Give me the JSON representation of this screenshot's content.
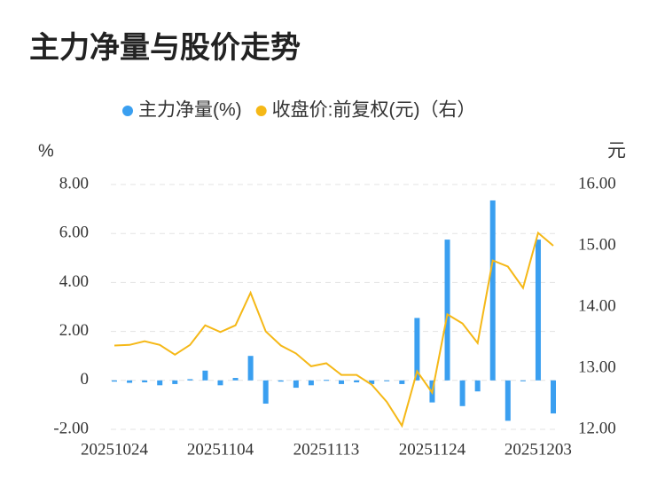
{
  "chart_data": {
    "type": "bar_line",
    "title": "主力净量与股价走势",
    "ylabel": "%",
    "y2label": "元",
    "categories": [
      "20251024",
      null,
      null,
      null,
      null,
      null,
      null,
      "20251104",
      null,
      null,
      null,
      null,
      null,
      null,
      "20251113",
      null,
      null,
      null,
      null,
      null,
      null,
      "20251124",
      null,
      null,
      null,
      null,
      null,
      null,
      "20251203",
      null
    ],
    "series": [
      {
        "name": "主力净量(%)",
        "type": "bar",
        "color": "#3a9ff0",
        "values": [
          -0.05,
          -0.1,
          -0.08,
          -0.2,
          -0.15,
          0.05,
          0.4,
          -0.2,
          0.1,
          1.0,
          -0.95,
          -0.05,
          -0.3,
          -0.2,
          0.02,
          -0.15,
          -0.08,
          -0.15,
          0,
          -0.15,
          2.55,
          -0.9,
          5.75,
          -1.05,
          -0.45,
          7.35,
          -1.65,
          0,
          5.75,
          -1.35
        ]
      },
      {
        "name": "收盘价:前复权(元)（右）",
        "type": "line",
        "axis": "y2",
        "color": "#f5b817",
        "values": [
          13.37,
          13.38,
          13.44,
          13.38,
          13.22,
          13.38,
          13.7,
          13.59,
          13.7,
          14.23,
          13.6,
          13.37,
          13.24,
          13.03,
          13.08,
          12.89,
          12.89,
          12.73,
          12.45,
          12.06,
          12.95,
          12.6,
          13.88,
          13.73,
          13.41,
          14.76,
          14.66,
          14.31,
          15.21,
          15.0
        ]
      }
    ],
    "ylim": [
      -2,
      8
    ],
    "yticks": [
      {
        "value": -2,
        "label": "-2.00"
      },
      0,
      {
        "value": 2,
        "label": "2.00"
      },
      {
        "value": 4,
        "label": "4.00"
      },
      {
        "value": 6,
        "label": "6.00"
      },
      {
        "value": 8,
        "label": "8.00"
      }
    ],
    "y2lim": [
      12,
      16
    ],
    "y2ticks": [
      {
        "value": 12,
        "label": "12.00"
      },
      {
        "value": 13,
        "label": "13.00"
      },
      {
        "value": 14,
        "label": "14.00"
      },
      {
        "value": 15,
        "label": "15.00"
      },
      {
        "value": 16,
        "label": "16.00"
      }
    ],
    "grid": true
  }
}
